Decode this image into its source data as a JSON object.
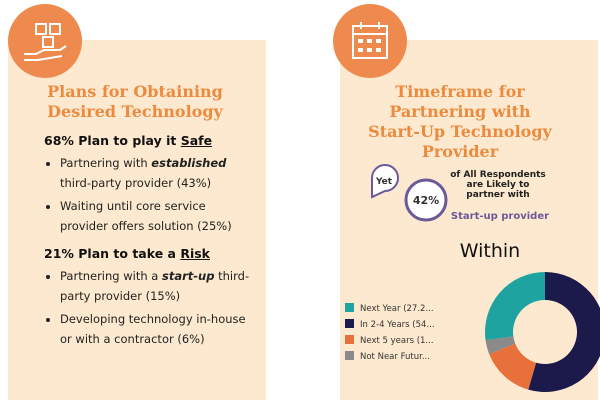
{
  "left": {
    "title": "Plans for Obtaining Desired Technology",
    "groups": [
      {
        "heading": "68% Plan to play it ",
        "heading_u": "Safe",
        "items": [
          {
            "text": "Partnering with ",
            "em": "established",
            "rest": " third-party provider (43%)"
          },
          {
            "text": "Waiting until core service provider offers solution (25%)"
          }
        ]
      },
      {
        "heading": "21% Plan to take a ",
        "heading_u": "Risk",
        "items": [
          {
            "text": "Partnering with a ",
            "em": "start-up",
            "rest": " third-party provider (15%)"
          },
          {
            "text": "Developing technology in-house or with a contractor (6%)"
          }
        ]
      }
    ]
  },
  "right": {
    "title": "Timeframe for Partnering with Start-Up Technology Provider",
    "badge_small": "Yet",
    "badge": "42%",
    "note": "of All Respondents are Likely to partner with",
    "note_highlight": "Start-up provider",
    "within": "Within",
    "donut": {
      "labels": [
        "Next Year (27.2...",
        "In 2-4 Years (54...",
        "Next 5 years (1...",
        "Not Near Futur..."
      ],
      "values": [
        27.2,
        54.5,
        14.5,
        3.8
      ],
      "colors": [
        "#1fa3a0",
        "#1c1a4a",
        "#e8703a",
        "#8a8a8a"
      ]
    }
  }
}
